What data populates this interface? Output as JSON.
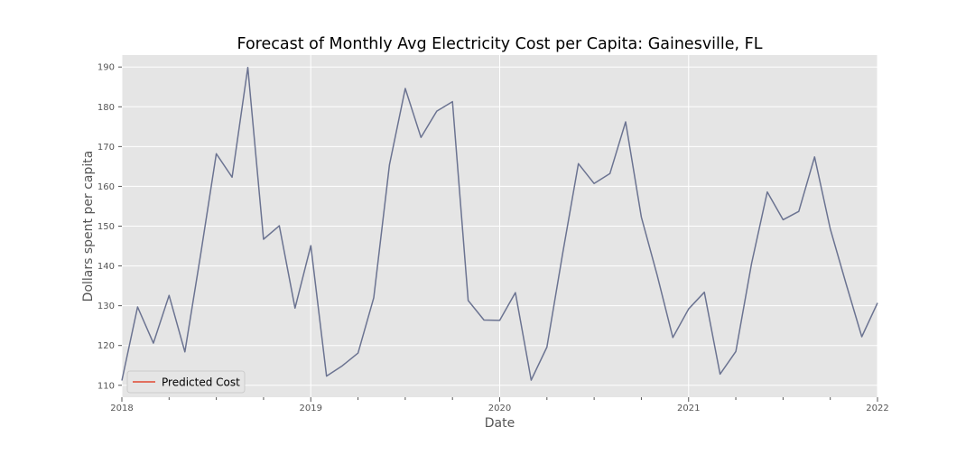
{
  "chart_data": {
    "type": "line",
    "title": "Forecast of Monthly Avg Electricity Cost per Capita: Gainesville, FL",
    "xlabel": "Date",
    "ylabel": "Dollars spent per capita",
    "x_range": [
      "2018-01",
      "2022-01"
    ],
    "x_ticks": [
      "2018",
      "2019",
      "2020",
      "2021",
      "2022"
    ],
    "ylim": [
      107,
      193
    ],
    "y_ticks": [
      110,
      120,
      130,
      140,
      150,
      160,
      170,
      180,
      190
    ],
    "grid": true,
    "legend": {
      "position": "lower-left",
      "entries": [
        "Predicted Cost"
      ]
    },
    "colors": {
      "series_line": "#6b7391",
      "legend_line": "#e24a33",
      "plot_bg": "#e5e5e5",
      "grid": "#ffffff"
    },
    "series": [
      {
        "name": "Predicted Cost",
        "x": [
          "2018-01",
          "2018-02",
          "2018-03",
          "2018-04",
          "2018-05",
          "2018-06",
          "2018-07",
          "2018-08",
          "2018-09",
          "2018-10",
          "2018-11",
          "2018-12",
          "2019-01",
          "2019-02",
          "2019-03",
          "2019-04",
          "2019-05",
          "2019-06",
          "2019-07",
          "2019-08",
          "2019-09",
          "2019-10",
          "2019-11",
          "2019-12",
          "2020-01",
          "2020-02",
          "2020-03",
          "2020-04",
          "2020-05",
          "2020-06",
          "2020-07",
          "2020-08",
          "2020-09",
          "2020-10",
          "2020-11",
          "2020-12",
          "2021-01",
          "2021-02",
          "2021-03",
          "2021-04",
          "2021-05",
          "2021-06",
          "2021-07",
          "2021-08",
          "2021-09",
          "2021-10",
          "2021-11",
          "2021-12",
          "2022-01"
        ],
        "values": [
          111.2,
          129.7,
          120.6,
          132.6,
          118.4,
          142.8,
          168.2,
          162.3,
          189.9,
          146.7,
          150.1,
          129.4,
          145.1,
          112.3,
          114.9,
          118.1,
          132.0,
          165.4,
          184.6,
          172.3,
          178.9,
          181.3,
          131.3,
          126.4,
          126.3,
          133.3,
          111.3,
          119.6,
          143.2,
          165.7,
          160.7,
          163.2,
          176.2,
          152.3,
          137.7,
          122.0,
          129.2,
          133.4,
          112.8,
          118.5,
          140.6,
          158.6,
          151.6,
          153.7,
          167.4,
          149.3,
          135.6,
          122.2,
          130.7
        ]
      }
    ]
  }
}
